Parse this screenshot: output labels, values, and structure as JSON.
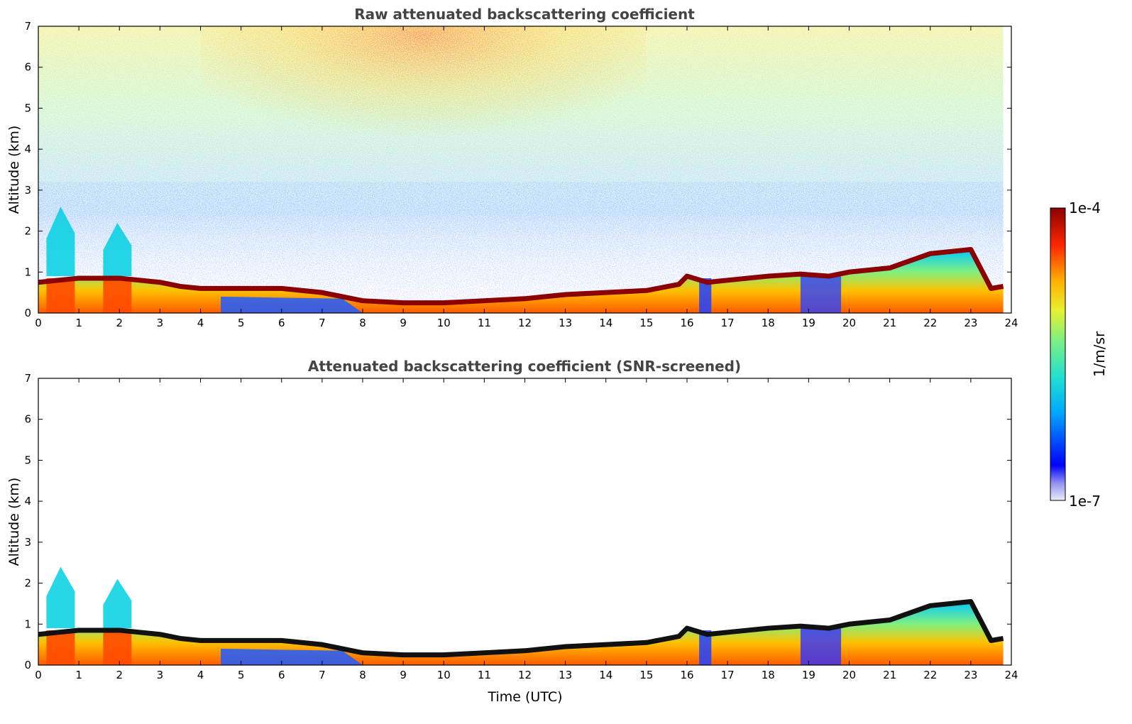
{
  "chart_data": [
    {
      "type": "heatmap",
      "title": "Raw attenuated backscattering coefficient",
      "xlabel": "",
      "ylabel": "Altitude (km)",
      "xlim": [
        0,
        24
      ],
      "ylim": [
        0,
        7
      ],
      "xticks": [
        "0",
        "1",
        "2",
        "3",
        "4",
        "5",
        "6",
        "7",
        "8",
        "9",
        "10",
        "11",
        "12",
        "13",
        "14",
        "15",
        "16",
        "17",
        "18",
        "19",
        "20",
        "21",
        "22",
        "23",
        "24"
      ],
      "yticks": [
        "0",
        "1",
        "2",
        "3",
        "4",
        "5",
        "6",
        "7"
      ],
      "data_end_hour": 23.8,
      "boundary_layer_top_km": {
        "time_utc": [
          0,
          0.5,
          1,
          1.5,
          2,
          2.5,
          3,
          3.5,
          4,
          5,
          6,
          7,
          8,
          9,
          10,
          11,
          12,
          13,
          14,
          15,
          15.8,
          16,
          16.5,
          17,
          18,
          18.8,
          19.5,
          20,
          21,
          22,
          23,
          23.5,
          23.8
        ],
        "altitude_km": [
          0.75,
          0.8,
          0.85,
          0.85,
          0.85,
          0.8,
          0.75,
          0.65,
          0.6,
          0.6,
          0.6,
          0.5,
          0.3,
          0.25,
          0.25,
          0.3,
          0.35,
          0.45,
          0.5,
          0.55,
          0.7,
          0.9,
          0.75,
          0.8,
          0.9,
          0.95,
          0.9,
          1.0,
          1.1,
          1.45,
          1.55,
          0.6,
          0.65
        ]
      },
      "cloud_columns": [
        {
          "time_utc": [
            0.2,
            0.9
          ],
          "top_km": 2.6
        },
        {
          "time_utc": [
            1.6,
            2.3
          ],
          "top_km": 2.2
        }
      ],
      "noise": "dense signal noise above boundary layer, strongest near 8–12 UTC at 5–7 km"
    },
    {
      "type": "heatmap",
      "title": "Attenuated backscattering coefficient (SNR-screened)",
      "xlabel": "Time (UTC)",
      "ylabel": "Altitude (km)",
      "xlim": [
        0,
        24
      ],
      "ylim": [
        0,
        7
      ],
      "xticks": [
        "0",
        "1",
        "2",
        "3",
        "4",
        "5",
        "6",
        "7",
        "8",
        "9",
        "10",
        "11",
        "12",
        "13",
        "14",
        "15",
        "16",
        "17",
        "18",
        "19",
        "20",
        "21",
        "22",
        "23",
        "24"
      ],
      "yticks": [
        "0",
        "1",
        "2",
        "3",
        "4",
        "5",
        "6",
        "7"
      ],
      "data_end_hour": 23.8,
      "boundary_layer_top_km": {
        "time_utc": [
          0,
          0.5,
          1,
          1.5,
          2,
          2.5,
          3,
          3.5,
          4,
          5,
          6,
          7,
          8,
          9,
          10,
          11,
          12,
          13,
          14,
          15,
          15.8,
          16,
          16.5,
          17,
          18,
          18.8,
          19.5,
          20,
          21,
          22,
          23,
          23.5,
          23.8
        ],
        "altitude_km": [
          0.75,
          0.8,
          0.85,
          0.85,
          0.85,
          0.8,
          0.75,
          0.65,
          0.6,
          0.6,
          0.6,
          0.5,
          0.3,
          0.25,
          0.25,
          0.3,
          0.35,
          0.45,
          0.5,
          0.55,
          0.7,
          0.9,
          0.75,
          0.8,
          0.9,
          0.95,
          0.9,
          1.0,
          1.1,
          1.45,
          1.55,
          0.6,
          0.65
        ]
      },
      "cloud_columns": [
        {
          "time_utc": [
            0.2,
            0.9
          ],
          "top_km": 2.4
        },
        {
          "time_utc": [
            1.6,
            2.3
          ],
          "top_km": 2.1
        }
      ],
      "noise": "screened out (white background)"
    }
  ],
  "colorbar": {
    "label": "1/m/sr",
    "max_label": "1e-4",
    "min_label": "1e-7",
    "colormap": "jet",
    "colors": [
      "#e8e8f8",
      "#0000ff",
      "#00b0ff",
      "#40f0c0",
      "#d8f040",
      "#ffa000",
      "#ff2000",
      "#8b0000"
    ]
  }
}
